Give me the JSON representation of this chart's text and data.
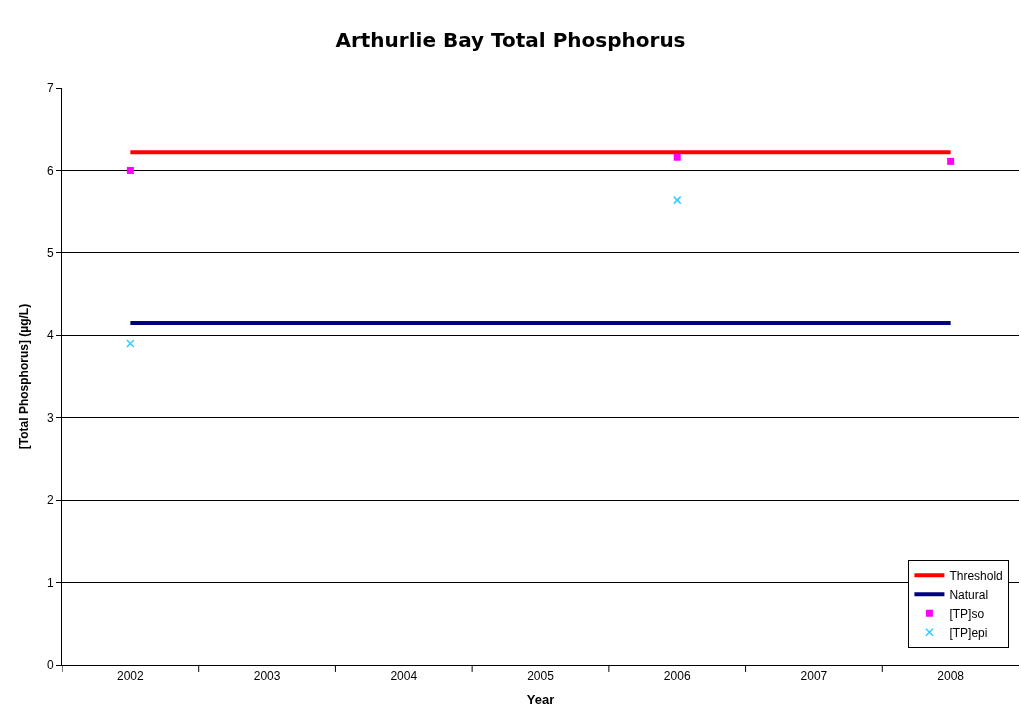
{
  "chart_data": {
    "type": "line",
    "title": "Arthurlie Bay Total Phosphorus",
    "xlabel": "Year",
    "ylabel": "[Total Phosphorus] (µg/L)",
    "categories": [
      "2002",
      "2003",
      "2004",
      "2005",
      "2006",
      "2007",
      "2008"
    ],
    "series": [
      {
        "name": "Threshold",
        "color": "#ff0000",
        "marker": "none",
        "values": [
          6.22,
          6.22,
          6.22,
          6.22,
          6.22,
          6.22,
          6.22
        ]
      },
      {
        "name": "Natural",
        "color": "#000080",
        "marker": "none",
        "values": [
          4.15,
          4.15,
          4.15,
          4.15,
          4.15,
          4.15,
          4.15
        ]
      },
      {
        "name": "[TP]so",
        "type": "scatter",
        "color": "#ff00ff",
        "marker": "square",
        "values": [
          6.0,
          null,
          null,
          null,
          6.16,
          null,
          6.11
        ]
      },
      {
        "name": "[TP]epi",
        "type": "scatter",
        "color": "#33ccff",
        "marker": "cross",
        "values": [
          3.9,
          null,
          null,
          null,
          5.64,
          null,
          null
        ]
      }
    ],
    "ylim": [
      0,
      7
    ],
    "yticks": [
      0,
      1,
      2,
      3,
      4,
      5,
      6,
      7
    ],
    "grid": "y",
    "legend": "bottom right"
  }
}
